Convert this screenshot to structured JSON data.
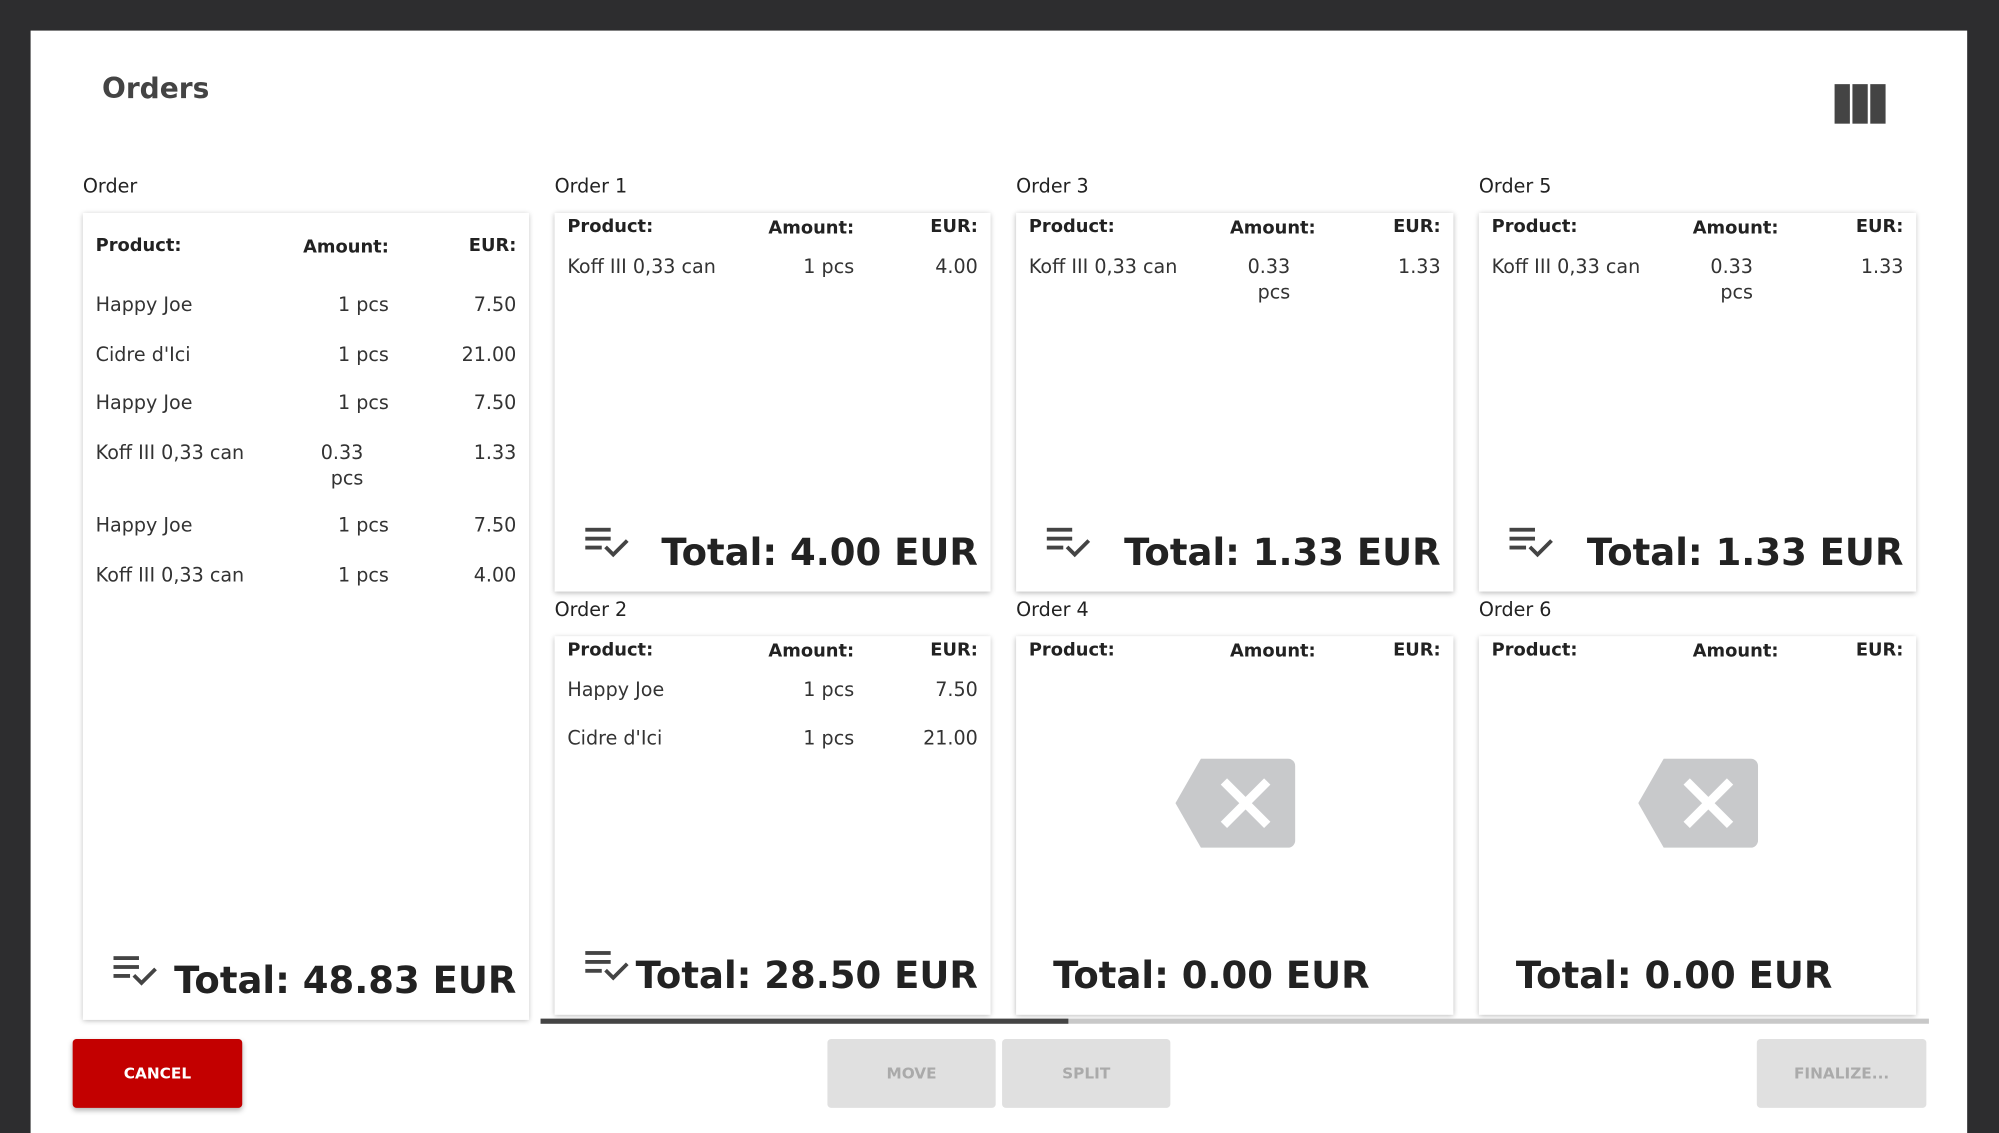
{
  "header": {
    "title": "Orders",
    "view_icon": "view-columns-icon"
  },
  "columns": {
    "product": "Product:",
    "amount": "Amount:",
    "eur": "EUR:"
  },
  "main_order": {
    "label": "Order",
    "items": [
      {
        "product": "Happy Joe",
        "amount": "1 pcs",
        "eur": "7.50"
      },
      {
        "product": "Cidre d'Ici",
        "amount": "1 pcs",
        "eur": "21.00"
      },
      {
        "product": "Happy Joe",
        "amount": "1 pcs",
        "eur": "7.50"
      },
      {
        "product": "Koff III 0,33 can",
        "amount": "0.33 pcs",
        "eur": "1.33"
      },
      {
        "product": "Happy Joe",
        "amount": "1 pcs",
        "eur": "7.50"
      },
      {
        "product": "Koff III 0,33 can",
        "amount": "1 pcs",
        "eur": "4.00"
      }
    ],
    "total": "Total: 48.83 EUR"
  },
  "orders": [
    {
      "label": "Order 1",
      "items": [
        {
          "product": "Koff III 0,33 can",
          "amount": "1 pcs",
          "eur": "4.00"
        }
      ],
      "total": "Total: 4.00 EUR"
    },
    {
      "label": "Order 2",
      "items": [
        {
          "product": "Happy Joe",
          "amount": "1 pcs",
          "eur": "7.50"
        },
        {
          "product": "Cidre d'Ici",
          "amount": "1 pcs",
          "eur": "21.00"
        }
      ],
      "total": "Total: 28.50 EUR"
    },
    {
      "label": "Order 3",
      "items": [
        {
          "product": "Koff III 0,33 can",
          "amount": "0.33 pcs",
          "eur": "1.33"
        }
      ],
      "total": "Total: 1.33 EUR"
    },
    {
      "label": "Order 4",
      "items": [],
      "total": "Total: 0.00 EUR"
    },
    {
      "label": "Order 5",
      "items": [
        {
          "product": "Koff III 0,33 can",
          "amount": "0.33 pcs",
          "eur": "1.33"
        }
      ],
      "total": "Total: 1.33 EUR"
    },
    {
      "label": "Order 6",
      "items": [],
      "total": "Total: 0.00 EUR"
    }
  ],
  "scroll_position_percent": 38,
  "buttons": {
    "cancel": "CANCEL",
    "move": "MOVE",
    "split": "SPLIT",
    "finalize": "FINALIZE..."
  },
  "colors": {
    "cancel": "#c30000",
    "disabled": "#e0e0e0",
    "background": "#2d2d2f"
  }
}
